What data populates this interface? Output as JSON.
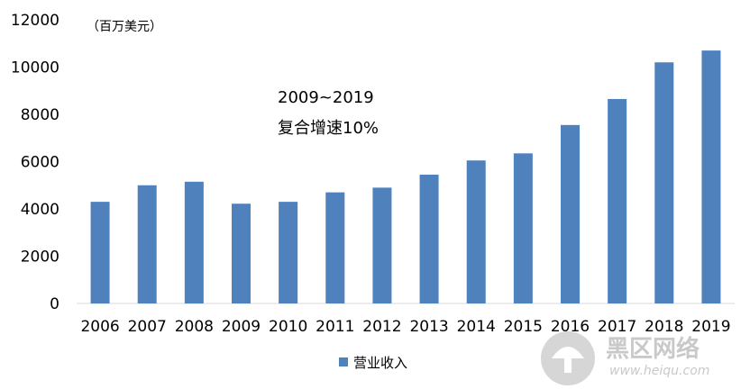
{
  "chart_data": {
    "type": "bar",
    "title": "",
    "unit_label": "（百万美元）",
    "categories": [
      "2006",
      "2007",
      "2008",
      "2009",
      "2010",
      "2011",
      "2012",
      "2013",
      "2014",
      "2015",
      "2016",
      "2017",
      "2018",
      "2019"
    ],
    "series": [
      {
        "name": "营业收入",
        "values": [
          4300,
          5000,
          5150,
          4220,
          4300,
          4700,
          4900,
          5450,
          6050,
          6350,
          7550,
          8650,
          10200,
          10700
        ]
      }
    ],
    "ylim": [
      0,
      12000
    ],
    "yticks": [
      "0",
      "2000",
      "4000",
      "6000",
      "8000",
      "10000",
      "12000"
    ],
    "grid": false,
    "legend_position": "bottom",
    "bar_color": "#4f81bd",
    "annotation": {
      "line1": "2009~2019",
      "line2": "复合增速10%"
    }
  },
  "watermark": {
    "text": "黑区网络",
    "url": "www.heiqu.com"
  }
}
